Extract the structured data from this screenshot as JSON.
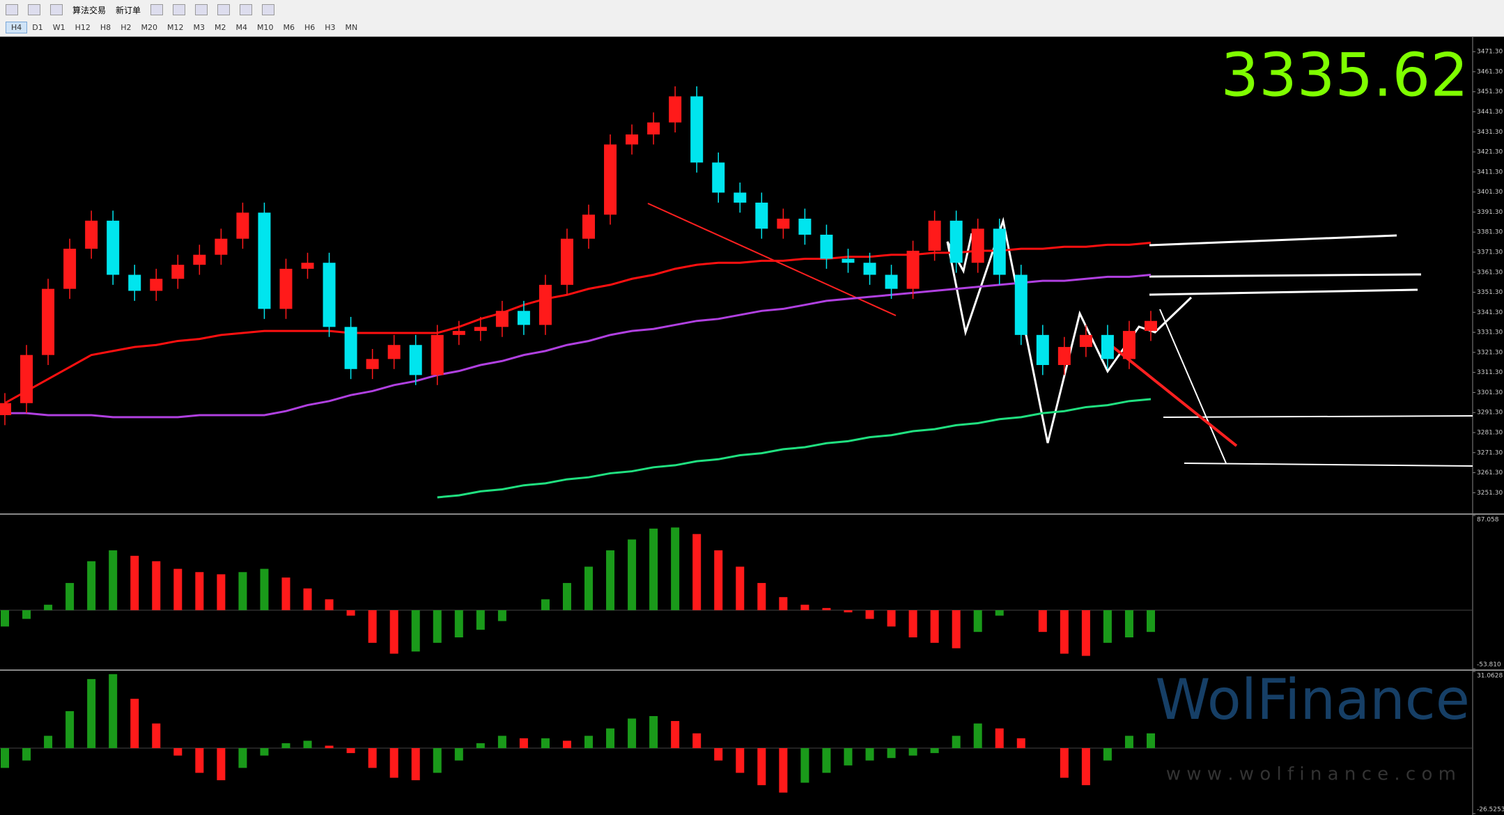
{
  "toolbar": {
    "buttons": [
      "算法交易",
      "新订单"
    ],
    "timeframes": [
      "H4",
      "D1",
      "W1",
      "H12",
      "H8",
      "H2",
      "M20",
      "M12",
      "M3",
      "M2",
      "M4",
      "M10",
      "M6",
      "H6",
      "H3",
      "MN"
    ]
  },
  "price_display": "3335.62",
  "watermark": {
    "brand": "WolFinance",
    "url": "w w w . w o l f i n a n c e . c o m"
  },
  "chart_data": [
    {
      "type": "candlestick",
      "up_color": "#ff1a1a",
      "down_color": "#00e5ee",
      "ylim": [
        3241,
        3479
      ],
      "yticks": [
        {
          "value": 3251.3,
          "label": "3251.30"
        },
        {
          "value": 3261.3,
          "label": "3261.30"
        },
        {
          "value": 3271.3,
          "label": "3271.30"
        },
        {
          "value": 3281.3,
          "label": "3281.30"
        },
        {
          "value": 3291.3,
          "label": "3291.30"
        },
        {
          "value": 3301.3,
          "label": "3301.30"
        },
        {
          "value": 3311.3,
          "label": "3311.30"
        },
        {
          "value": 3321.3,
          "label": "3321.30"
        },
        {
          "value": 3331.3,
          "label": "3331.30"
        },
        {
          "value": 3341.3,
          "label": "3341.30"
        },
        {
          "value": 3351.3,
          "label": "3351.30"
        },
        {
          "value": 3361.3,
          "label": "3361.30"
        },
        {
          "value": 3371.3,
          "label": "3371.30"
        },
        {
          "value": 3381.3,
          "label": "3381.30"
        },
        {
          "value": 3391.3,
          "label": "3391.30"
        },
        {
          "value": 3401.3,
          "label": "3401.30"
        },
        {
          "value": 3411.3,
          "label": "3411.30"
        },
        {
          "value": 3421.3,
          "label": "3421.30"
        },
        {
          "value": 3431.3,
          "label": "3431.30"
        },
        {
          "value": 3441.3,
          "label": "3441.30"
        },
        {
          "value": 3451.3,
          "label": "3451.30"
        },
        {
          "value": 3461.3,
          "label": "3461.30"
        },
        {
          "value": 3471.3,
          "label": "3471.30"
        }
      ],
      "open": [
        3290,
        3296,
        3320,
        3353,
        3373,
        3387,
        3360,
        3352,
        3358,
        3365,
        3370,
        3378,
        3391,
        3343,
        3363,
        3366,
        3334,
        3313,
        3318,
        3325,
        3310,
        3330,
        3332,
        3334,
        3342,
        3335,
        3355,
        3378,
        3390,
        3425,
        3430,
        3436,
        3449,
        3416,
        3401,
        3396,
        3383,
        3388,
        3380,
        3368,
        3366,
        3360,
        3353,
        3372,
        3387,
        3366,
        3383,
        3360,
        3330,
        3315,
        3324,
        3330,
        3318,
        3332
      ],
      "high": [
        3301,
        3325,
        3358,
        3378,
        3392,
        3392,
        3365,
        3363,
        3370,
        3375,
        3383,
        3396,
        3396,
        3368,
        3371,
        3371,
        3339,
        3323,
        3330,
        3330,
        3335,
        3337,
        3339,
        3347,
        3347,
        3360,
        3383,
        3395,
        3430,
        3435,
        3441,
        3454,
        3454,
        3421,
        3406,
        3401,
        3393,
        3393,
        3385,
        3373,
        3371,
        3365,
        3377,
        3392,
        3392,
        3388,
        3388,
        3365,
        3335,
        3329,
        3335,
        3335,
        3337,
        3342
      ],
      "low": [
        3285,
        3291,
        3315,
        3348,
        3368,
        3355,
        3347,
        3347,
        3353,
        3360,
        3365,
        3373,
        3338,
        3338,
        3358,
        3329,
        3308,
        3308,
        3313,
        3305,
        3305,
        3325,
        3327,
        3329,
        3330,
        3330,
        3350,
        3373,
        3385,
        3420,
        3425,
        3431,
        3411,
        3396,
        3391,
        3378,
        3378,
        3375,
        3363,
        3361,
        3355,
        3348,
        3348,
        3367,
        3361,
        3361,
        3355,
        3325,
        3310,
        3310,
        3319,
        3313,
        3313,
        3327
      ],
      "close": [
        3296,
        3320,
        3353,
        3373,
        3387,
        3360,
        3352,
        3358,
        3365,
        3370,
        3378,
        3391,
        3343,
        3363,
        3366,
        3334,
        3313,
        3318,
        3325,
        3310,
        3330,
        3332,
        3334,
        3342,
        3335,
        3355,
        3378,
        3390,
        3425,
        3430,
        3436,
        3449,
        3416,
        3401,
        3396,
        3383,
        3388,
        3380,
        3368,
        3366,
        3360,
        3353,
        3372,
        3387,
        3366,
        3383,
        3360,
        3330,
        3315,
        3324,
        3330,
        3318,
        3332,
        3337
      ],
      "series": [
        {
          "color": "#b040e0",
          "values": [
            3291,
            3291,
            3290,
            3290,
            3290,
            3289,
            3289,
            3289,
            3289,
            3290,
            3290,
            3290,
            3290,
            3292,
            3295,
            3297,
            3300,
            3302,
            3305,
            3307,
            3310,
            3312,
            3315,
            3317,
            3320,
            3322,
            3325,
            3327,
            3330,
            3332,
            3333,
            3335,
            3337,
            3338,
            3340,
            3342,
            3343,
            3345,
            3347,
            3348,
            3349,
            3350,
            3351,
            3352,
            3353,
            3354,
            3355,
            3356,
            3357,
            3357,
            3358,
            3359,
            3359,
            3360
          ]
        },
        {
          "color": "#ff1010",
          "values": [
            3296,
            3302,
            3308,
            3314,
            3320,
            3322,
            3324,
            3325,
            3327,
            3328,
            3330,
            3331,
            3332,
            3332,
            3332,
            3332,
            3331,
            3331,
            3331,
            3331,
            3331,
            3334,
            3338,
            3341,
            3345,
            3348,
            3350,
            3353,
            3355,
            3358,
            3360,
            3363,
            3365,
            3366,
            3366,
            3367,
            3367,
            3368,
            3368,
            3369,
            3369,
            3370,
            3370,
            3371,
            3371,
            3372,
            3372,
            3373,
            3373,
            3374,
            3374,
            3375,
            3375,
            3376
          ]
        },
        {
          "color": "#20e080",
          "values": [
            null,
            null,
            null,
            null,
            null,
            null,
            null,
            null,
            null,
            null,
            null,
            null,
            null,
            null,
            null,
            null,
            null,
            null,
            null,
            null,
            3249,
            3250,
            3252,
            3253,
            3255,
            3256,
            3258,
            3259,
            3261,
            3262,
            3264,
            3265,
            3267,
            3268,
            3270,
            3271,
            3273,
            3274,
            3276,
            3277,
            3279,
            3280,
            3282,
            3283,
            3285,
            3286,
            3288,
            3289,
            3291,
            3292,
            3294,
            3295,
            3297,
            3298
          ]
        }
      ]
    },
    {
      "type": "bar",
      "rise_color": "#1a9a1a",
      "fall_color": "#ff1a1a",
      "ylim": [
        -53.81,
        87.058
      ],
      "yticks": [
        {
          "value": -53.81,
          "label": "-53.810"
        },
        87.058
      ],
      "values": [
        -15,
        -8,
        5,
        25,
        45,
        55,
        50,
        45,
        38,
        35,
        33,
        35,
        38,
        30,
        20,
        10,
        -5,
        -30,
        -40,
        -38,
        -30,
        -25,
        -18,
        -10,
        0,
        10,
        25,
        40,
        55,
        65,
        75,
        76,
        70,
        55,
        40,
        25,
        12,
        5,
        2,
        -2,
        -8,
        -15,
        -25,
        -30,
        -35,
        -20,
        -5,
        0,
        -20,
        -40,
        -42,
        -30,
        -25,
        -20
      ]
    },
    {
      "type": "bar",
      "rise_color": "#1a9a1a",
      "fall_color": "#ff1a1a",
      "ylim": [
        -26.5253,
        31.0628
      ],
      "yticks": [
        -26.5253,
        31.0628
      ],
      "values": [
        -8,
        -5,
        5,
        15,
        28,
        30,
        20,
        10,
        -3,
        -10,
        -13,
        -8,
        -3,
        2,
        3,
        1,
        -2,
        -8,
        -12,
        -13,
        -10,
        -5,
        2,
        5,
        4,
        4,
        3,
        5,
        8,
        12,
        13,
        11,
        6,
        -5,
        -10,
        -15,
        -18,
        -14,
        -10,
        -7,
        -5,
        -4,
        -3,
        -2,
        5,
        10,
        8,
        4,
        0,
        -12,
        -15,
        -5,
        5,
        6
      ]
    }
  ]
}
